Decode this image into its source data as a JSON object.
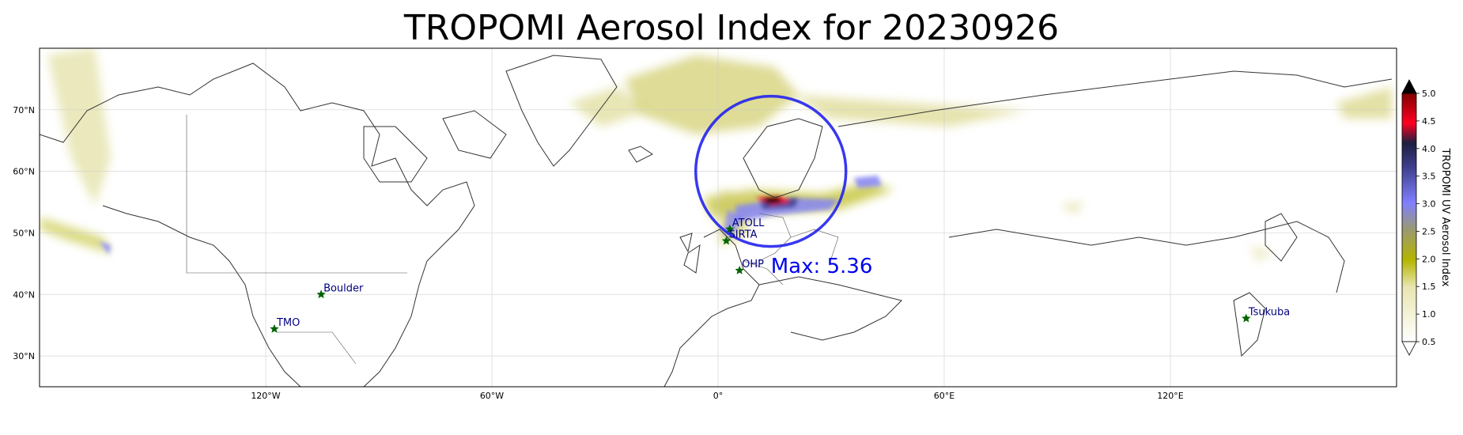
{
  "title": "TROPOMI Aerosol Index for 20230926",
  "map": {
    "lon_range": [
      -180,
      180
    ],
    "lat_range": [
      25,
      80
    ],
    "lon_ticks": [
      {
        "value": -120,
        "label": "120°W"
      },
      {
        "value": -60,
        "label": "60°W"
      },
      {
        "value": 0,
        "label": "0°"
      },
      {
        "value": 60,
        "label": "60°E"
      },
      {
        "value": 120,
        "label": "120°E"
      }
    ],
    "lat_ticks": [
      {
        "value": 70,
        "label": "70°N"
      },
      {
        "value": 60,
        "label": "60°N"
      },
      {
        "value": 50,
        "label": "50°N"
      },
      {
        "value": 40,
        "label": "40°N"
      },
      {
        "value": 30,
        "label": "30°N"
      }
    ],
    "gridlines": true,
    "stations": [
      {
        "name": "TMO",
        "lon": -117.7,
        "lat": 34.4
      },
      {
        "name": "Boulder",
        "lon": -105.3,
        "lat": 40.0
      },
      {
        "name": "ATOLL",
        "lon": 3.1,
        "lat": 50.6
      },
      {
        "name": "SIRTA",
        "lon": 2.2,
        "lat": 48.7
      },
      {
        "name": "OHP",
        "lon": 5.7,
        "lat": 43.9
      },
      {
        "name": "Tsukuba",
        "lon": 140.1,
        "lat": 36.1
      }
    ],
    "max_annotation": {
      "text": "Max: 5.36",
      "lon": 14.0,
      "lat": 43.5
    },
    "max_circle": {
      "center_lon": 14.0,
      "center_lat": 60.0,
      "color": "#2222ee"
    },
    "station_color": "#006400",
    "station_label_color": "#000080"
  },
  "colorbar": {
    "label": "TROPOMI UV Aerosol Index",
    "min": 0.5,
    "max": 5.0,
    "ticks": [
      {
        "value": 0.5,
        "label": "0.5"
      },
      {
        "value": 1.0,
        "label": "1.0"
      },
      {
        "value": 1.5,
        "label": "1.5"
      },
      {
        "value": 2.0,
        "label": "2.0"
      },
      {
        "value": 2.5,
        "label": "2.5"
      },
      {
        "value": 3.0,
        "label": "3.0"
      },
      {
        "value": 3.5,
        "label": "3.5"
      },
      {
        "value": 4.0,
        "label": "4.0"
      },
      {
        "value": 4.5,
        "label": "4.5"
      },
      {
        "value": 5.0,
        "label": "5.0"
      }
    ],
    "colors": [
      "#ffffff",
      "#c8c350",
      "#b4b400",
      "#7f7fff",
      "#404090",
      "#1e1e40",
      "#ff0020",
      "#000000"
    ],
    "extend": "both"
  }
}
